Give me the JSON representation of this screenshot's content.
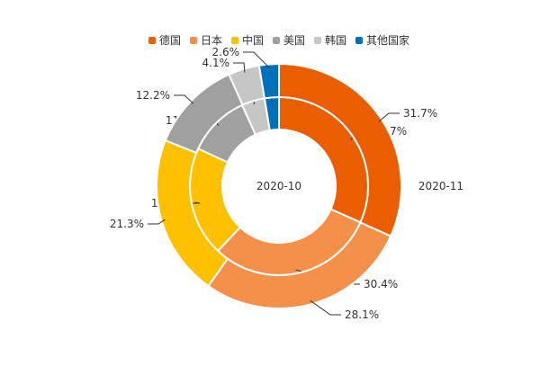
{
  "chart_data": {
    "type": "pie",
    "subtype": "nested-donut",
    "categories": [
      "德国",
      "日本",
      "中国",
      "美国",
      "韩国",
      "其他国家"
    ],
    "colors": [
      "#EB5E00",
      "#F4904A",
      "#FFC000",
      "#A0A0A0",
      "#C6C6C6",
      "#0070B8"
    ],
    "legend_position": "top",
    "series": [
      {
        "name": "2020-10",
        "ring": "inner",
        "values": [
          31.7,
          30.4,
          19.9,
          11.3,
          4.2,
          2.6
        ],
        "labels": [
          "31.7%",
          "30.4%",
          "19.9%",
          "11.3%",
          "4.2%",
          "2.6%"
        ]
      },
      {
        "name": "2020-11",
        "ring": "outer",
        "values": [
          31.7,
          28.1,
          21.3,
          12.2,
          4.1,
          2.6
        ],
        "labels": [
          "31.7%",
          "28.1%",
          "21.3%",
          "12.2%",
          "4.1%",
          "2.6%"
        ]
      }
    ]
  }
}
